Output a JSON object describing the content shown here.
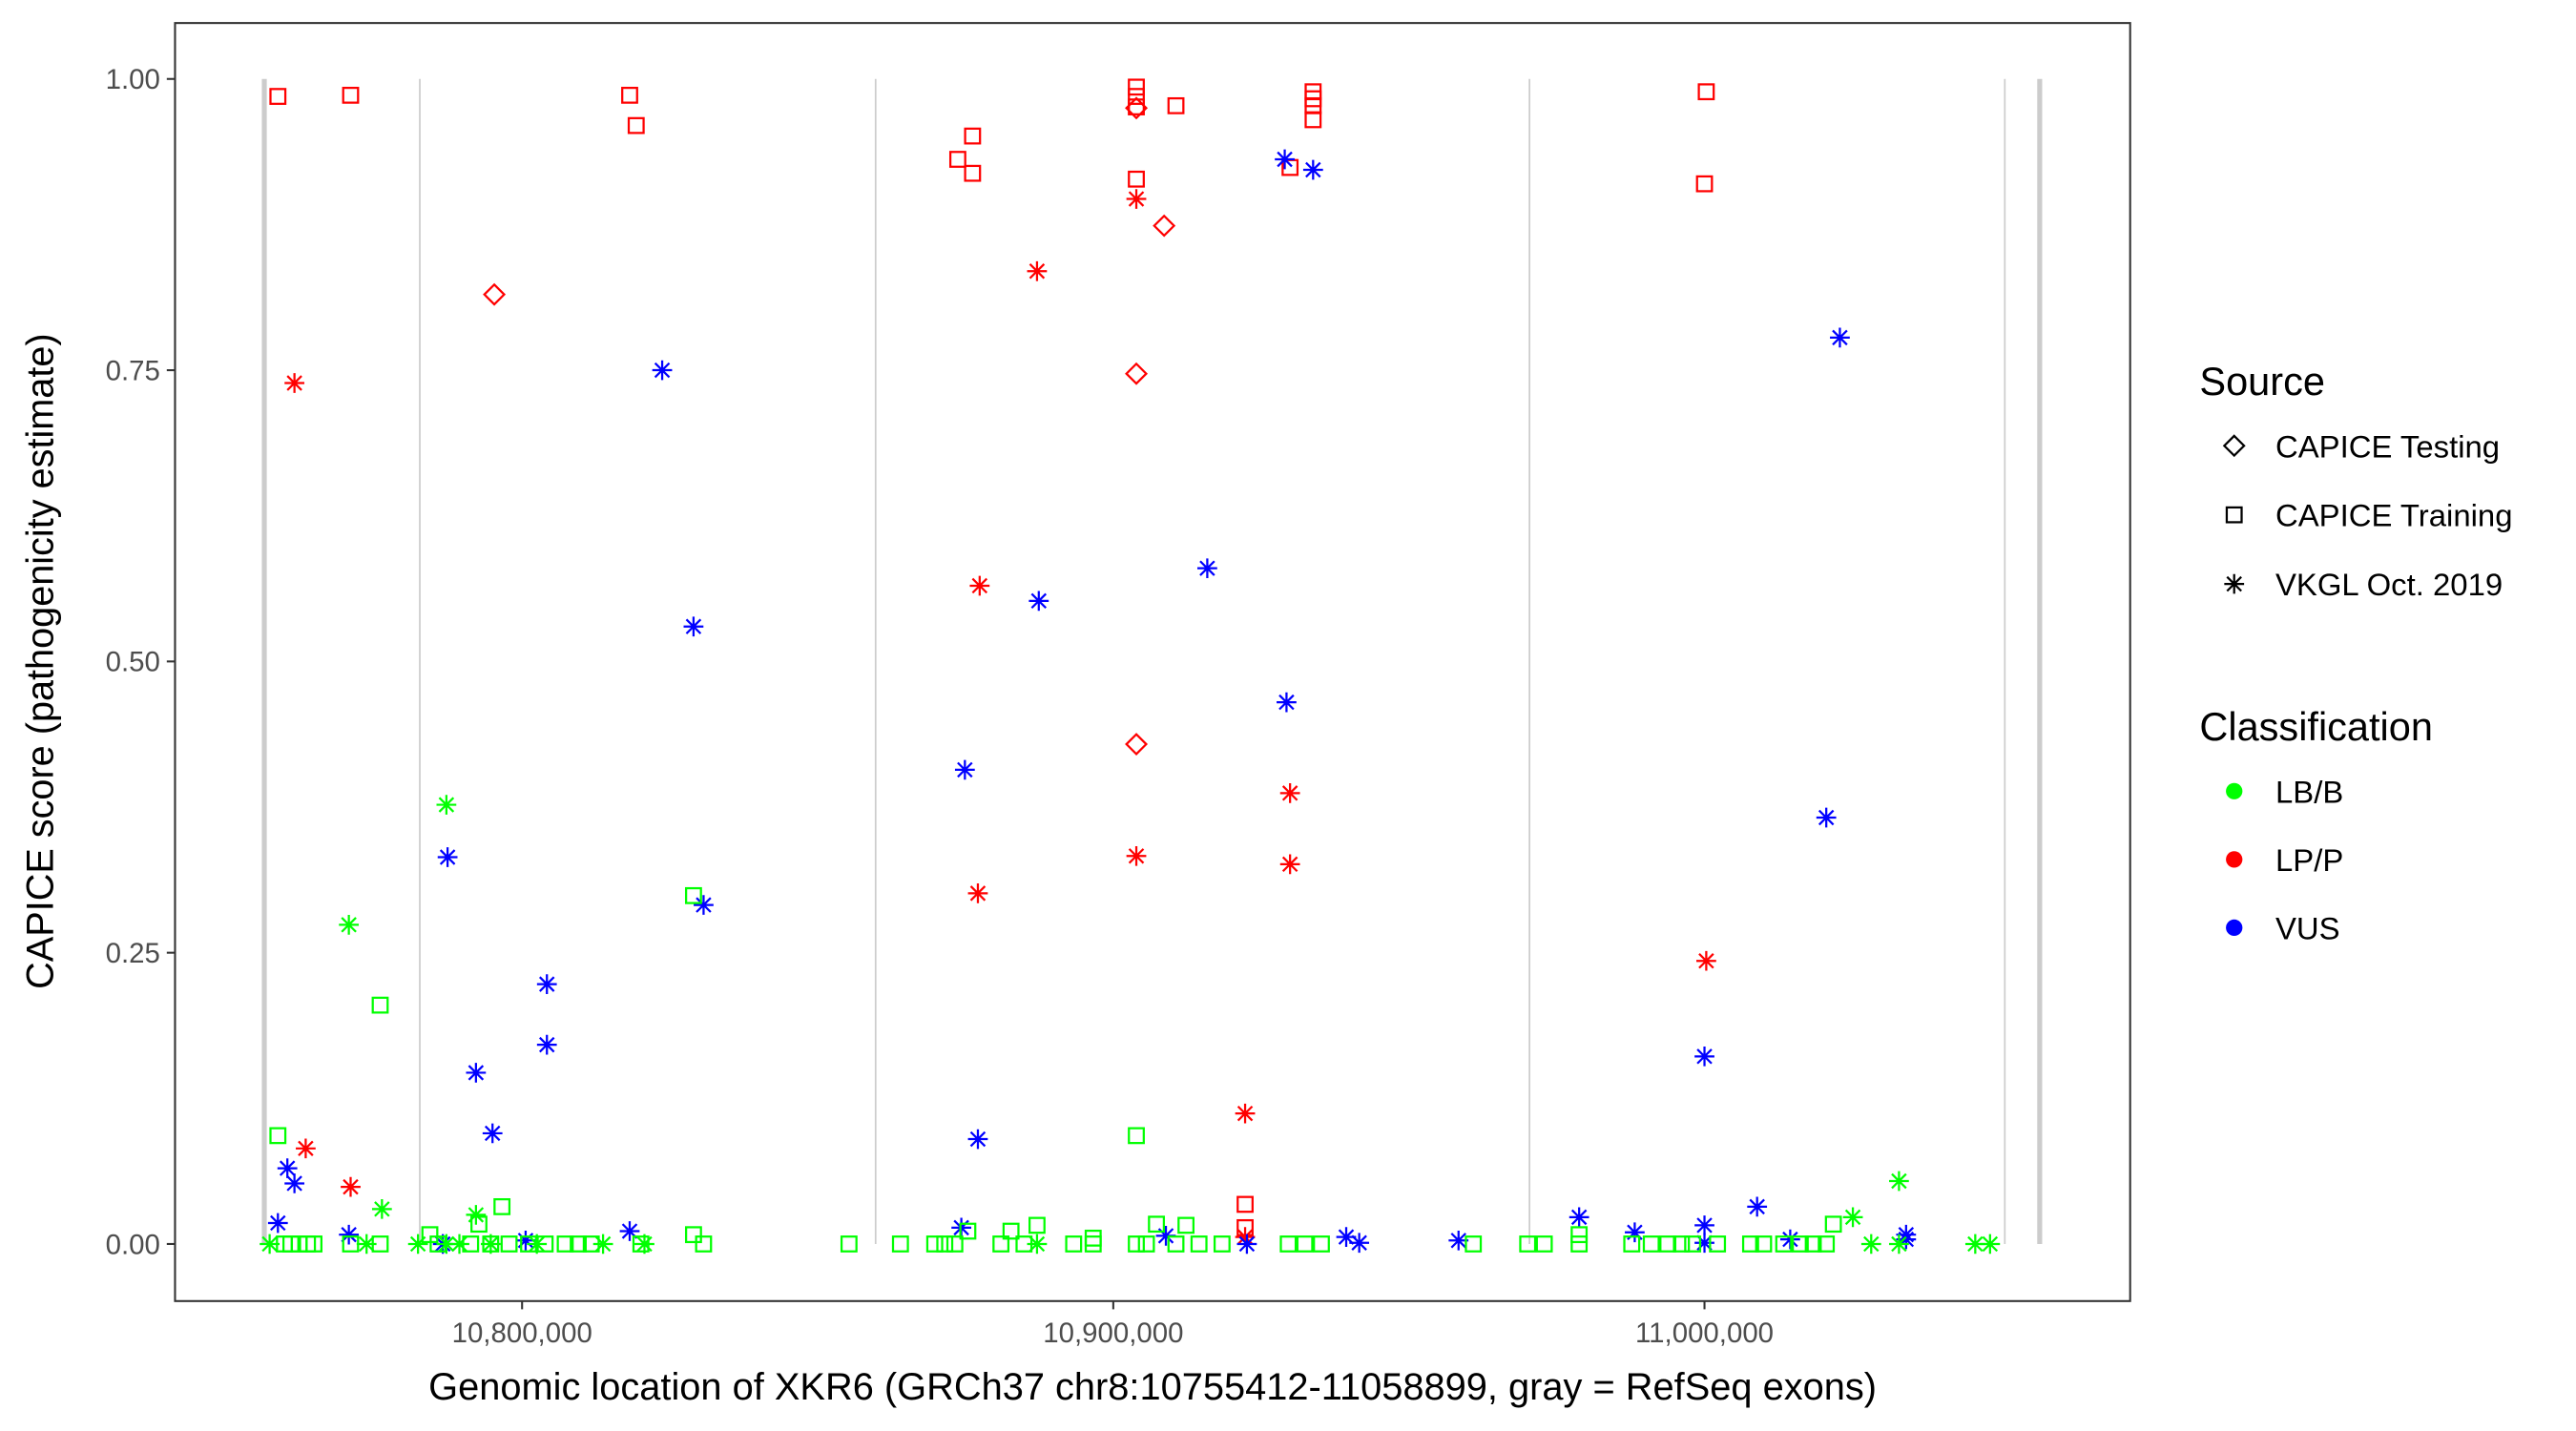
{
  "chart_data": {
    "type": "scatter",
    "title": "",
    "xlabel": "Genomic location of XKR6 (GRCh37 chr8:10755412-11058899, gray = RefSeq exons)",
    "ylabel": "CAPICE score (pathogenicity estimate)",
    "xlim": [
      10741300,
      11072000
    ],
    "ylim": [
      -0.049,
      1.048
    ],
    "xticks": [
      10800000,
      10900000,
      11000000
    ],
    "xtick_labels": [
      "10,800,000",
      "10,900,000",
      "11,000,000"
    ],
    "yticks": [
      0,
      0.25,
      0.5,
      0.75,
      1.0
    ],
    "ytick_labels": [
      "0.00",
      "0.25",
      "0.50",
      "0.75",
      "1.00"
    ],
    "grid": false,
    "exons": [
      10756400,
      10782700,
      10859800,
      10970400,
      11050800,
      11056700
    ],
    "exon_color": "#cccccc",
    "colors": {
      "LB/B": "#00ff00",
      "LP/P": "#ff0000",
      "VUS": "#0000ff"
    },
    "legend": {
      "placement": "right",
      "source_title": "Source",
      "source_items": [
        {
          "label": "CAPICE Testing",
          "shape": "diamond"
        },
        {
          "label": "CAPICE Training",
          "shape": "square"
        },
        {
          "label": "VKGL Oct. 2019",
          "shape": "asterisk"
        }
      ],
      "class_title": "Classification",
      "class_items": [
        {
          "label": "LB/B",
          "color": "#00ff00"
        },
        {
          "label": "LP/P",
          "color": "#ff0000"
        },
        {
          "label": "VUS",
          "color": "#0000ff"
        }
      ]
    },
    "series": [
      {
        "source": "CAPICE Training",
        "class": "LP/P",
        "points": [
          [
            10758700,
            0.985
          ],
          [
            10771000,
            0.986
          ],
          [
            10818200,
            0.986
          ],
          [
            10819300,
            0.96
          ],
          [
            10873700,
            0.931
          ],
          [
            10876200,
            0.951
          ],
          [
            10876200,
            0.919
          ],
          [
            10903900,
            0.993
          ],
          [
            10903900,
            0.985
          ],
          [
            10903900,
            0.976
          ],
          [
            10903900,
            0.914
          ],
          [
            10910600,
            0.977
          ],
          [
            10929900,
            0.924
          ],
          [
            10933800,
            0.989
          ],
          [
            10933800,
            0.983
          ],
          [
            10933800,
            0.977
          ],
          [
            10933800,
            0.965
          ],
          [
            11000300,
            0.989
          ],
          [
            11000000,
            0.91
          ],
          [
            10922300,
            0.034
          ],
          [
            10922300,
            0.014
          ]
        ]
      },
      {
        "source": "CAPICE Testing",
        "class": "LP/P",
        "points": [
          [
            10795300,
            0.815
          ],
          [
            10903900,
            0.975
          ],
          [
            10908600,
            0.874
          ],
          [
            10903900,
            0.747
          ],
          [
            10903900,
            0.429
          ]
        ]
      },
      {
        "source": "VKGL Oct. 2019",
        "class": "LP/P",
        "points": [
          [
            10761500,
            0.739
          ],
          [
            10763400,
            0.082
          ],
          [
            10771000,
            0.049
          ],
          [
            10887100,
            0.835
          ],
          [
            10903900,
            0.897
          ],
          [
            10877400,
            0.565
          ],
          [
            10877100,
            0.301
          ],
          [
            10903900,
            0.333
          ],
          [
            10929900,
            0.387
          ],
          [
            10929900,
            0.326
          ],
          [
            10922300,
            0.112
          ],
          [
            11000300,
            0.243
          ],
          [
            10922300,
            0.006
          ]
        ]
      },
      {
        "source": "VKGL Oct. 2019",
        "class": "VUS",
        "points": [
          [
            10823700,
            0.75
          ],
          [
            10829000,
            0.53
          ],
          [
            10787400,
            0.332
          ],
          [
            10830700,
            0.291
          ],
          [
            10804200,
            0.223
          ],
          [
            10804200,
            0.171
          ],
          [
            10792200,
            0.147
          ],
          [
            10795000,
            0.095
          ],
          [
            10760300,
            0.065
          ],
          [
            10761500,
            0.052
          ],
          [
            10758700,
            0.018
          ],
          [
            10770700,
            0.008
          ],
          [
            10786600,
            0.0
          ],
          [
            10800600,
            0.003
          ],
          [
            10818200,
            0.011
          ],
          [
            10929000,
            0.931
          ],
          [
            10933800,
            0.922
          ],
          [
            10915900,
            0.58
          ],
          [
            10887400,
            0.552
          ],
          [
            10929300,
            0.465
          ],
          [
            10874900,
            0.407
          ],
          [
            10877100,
            0.09
          ],
          [
            10874300,
            0.014
          ],
          [
            10908900,
            0.007
          ],
          [
            10922600,
            0.0
          ],
          [
            10939400,
            0.006
          ],
          [
            10941600,
            0.001
          ],
          [
            10958400,
            0.003
          ],
          [
            10978800,
            0.023
          ],
          [
            10988200,
            0.01
          ],
          [
            11000000,
            0.161
          ],
          [
            11000000,
            0.016
          ],
          [
            11000000,
            0.001
          ],
          [
            11022900,
            0.778
          ],
          [
            11020600,
            0.366
          ],
          [
            11008900,
            0.032
          ],
          [
            11014500,
            0.004
          ],
          [
            11034100,
            0.008
          ],
          [
            11034100,
            0.004
          ]
        ]
      },
      {
        "source": "VKGL Oct. 2019",
        "class": "LB/B",
        "points": [
          [
            10787200,
            0.377
          ],
          [
            10770700,
            0.274
          ],
          [
            10776300,
            0.03
          ],
          [
            10792200,
            0.025
          ],
          [
            11032900,
            0.054
          ],
          [
            11025100,
            0.023
          ],
          [
            10757300,
            0
          ],
          [
            10773700,
            0
          ],
          [
            10782400,
            0
          ],
          [
            10787200,
            0
          ],
          [
            10789400,
            0
          ],
          [
            10794700,
            0
          ],
          [
            10802500,
            0
          ],
          [
            10813700,
            0
          ],
          [
            10820700,
            0
          ],
          [
            10887100,
            0
          ],
          [
            11028200,
            0
          ],
          [
            11045800,
            0
          ],
          [
            11048300,
            0
          ],
          [
            11032900,
            0
          ]
        ]
      },
      {
        "source": "CAPICE Training",
        "class": "LB/B",
        "points": [
          [
            10758700,
            0.093
          ],
          [
            10776000,
            0.205
          ],
          [
            10829000,
            0.299
          ],
          [
            10796600,
            0.032
          ],
          [
            10903900,
            0.093
          ],
          [
            10784400,
            0.008
          ],
          [
            10792700,
            0.017
          ],
          [
            10829000,
            0.008
          ],
          [
            10875400,
            0.011
          ],
          [
            10882700,
            0.011
          ],
          [
            10887100,
            0.016
          ],
          [
            10907300,
            0.017
          ],
          [
            10912300,
            0.016
          ],
          [
            10896600,
            0.005
          ],
          [
            11021800,
            0.017
          ],
          [
            10978800,
            0.008
          ],
          [
            10759800,
            0
          ],
          [
            10760900,
            0
          ],
          [
            10762300,
            0
          ],
          [
            10763700,
            0
          ],
          [
            10764800,
            0
          ],
          [
            10771000,
            0
          ],
          [
            10776000,
            0
          ],
          [
            10785800,
            0
          ],
          [
            10791300,
            0
          ],
          [
            10794700,
            0
          ],
          [
            10797800,
            0
          ],
          [
            10801100,
            0
          ],
          [
            10803900,
            0
          ],
          [
            10807300,
            0
          ],
          [
            10809500,
            0
          ],
          [
            10811700,
            0
          ],
          [
            10820100,
            0
          ],
          [
            10830700,
            0
          ],
          [
            10855300,
            0
          ],
          [
            10864000,
            0
          ],
          [
            10869800,
            0
          ],
          [
            10871500,
            0
          ],
          [
            10873200,
            0
          ],
          [
            10881000,
            0
          ],
          [
            10884900,
            0
          ],
          [
            10893300,
            0
          ],
          [
            10896600,
            0
          ],
          [
            10903900,
            0
          ],
          [
            10905600,
            0
          ],
          [
            10910600,
            0
          ],
          [
            10914500,
            0
          ],
          [
            10918400,
            0
          ],
          [
            10929600,
            0
          ],
          [
            10932400,
            0
          ],
          [
            10935200,
            0
          ],
          [
            10960900,
            0
          ],
          [
            10970100,
            0
          ],
          [
            10972900,
            0
          ],
          [
            10978800,
            0
          ],
          [
            10987700,
            0
          ],
          [
            10991000,
            0
          ],
          [
            10993800,
            0
          ],
          [
            10996100,
            0
          ],
          [
            10998000,
            0
          ],
          [
            11002200,
            0
          ],
          [
            11007800,
            0
          ],
          [
            11010000,
            0
          ],
          [
            11013400,
            0
          ],
          [
            11016200,
            0
          ],
          [
            11018400,
            0
          ],
          [
            11020600,
            0
          ]
        ]
      }
    ]
  }
}
